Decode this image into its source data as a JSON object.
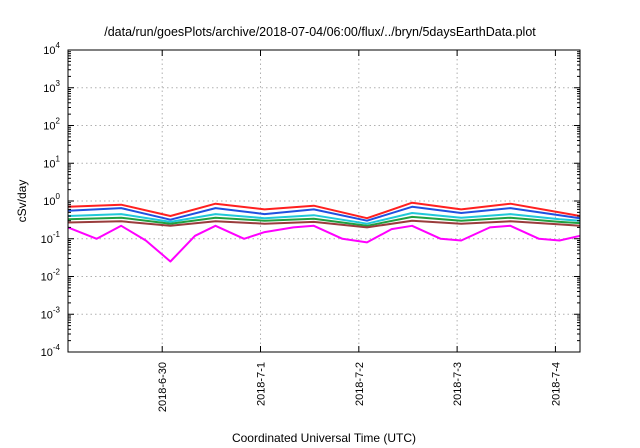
{
  "chart_data": {
    "type": "line",
    "title": "/data/run/goesPlots/archive/2018-07-04/06:00/flux/../bryn/5daysEarthData.plot",
    "xlabel": "Coordinated Universal Time (UTC)",
    "ylabel": "cSv/day",
    "xscale": "time",
    "yscale": "log",
    "xlim": [
      "2018-06-29T01:00",
      "2018-07-04T06:00"
    ],
    "ylim": [
      0.0001,
      10000
    ],
    "x_ticks": [
      {
        "label": "2018-6-30",
        "value": "2018-06-30T00:00"
      },
      {
        "label": "2018-7-1",
        "value": "2018-07-01T00:00"
      },
      {
        "label": "2018-7-2",
        "value": "2018-07-02T00:00"
      },
      {
        "label": "2018-7-3",
        "value": "2018-07-03T00:00"
      },
      {
        "label": "2018-7-4",
        "value": "2018-07-04T00:00"
      }
    ],
    "y_ticks": [
      {
        "base": "10",
        "exp": "-4",
        "value": 0.0001
      },
      {
        "base": "10",
        "exp": "-3",
        "value": 0.001
      },
      {
        "base": "10",
        "exp": "-2",
        "value": 0.01
      },
      {
        "base": "10",
        "exp": "-1",
        "value": 0.1
      },
      {
        "base": "10",
        "exp": "0",
        "value": 1
      },
      {
        "base": "10",
        "exp": "1",
        "value": 10
      },
      {
        "base": "10",
        "exp": "2",
        "value": 100
      },
      {
        "base": "10",
        "exp": "3",
        "value": 1000
      },
      {
        "base": "10",
        "exp": "4",
        "value": 10000
      }
    ],
    "grid": true,
    "series": [
      {
        "color": "#ff2020",
        "x": [
          "2018-06-29T01:00",
          "2018-06-29T14:00",
          "2018-06-30T02:00",
          "2018-06-30T13:00",
          "2018-07-01T01:00",
          "2018-07-01T13:00",
          "2018-07-02T02:00",
          "2018-07-02T13:00",
          "2018-07-03T01:00",
          "2018-07-03T13:00",
          "2018-07-04T01:00",
          "2018-07-04T06:00"
        ],
        "y": [
          0.7,
          0.8,
          0.4,
          0.85,
          0.6,
          0.75,
          0.35,
          0.9,
          0.6,
          0.85,
          0.5,
          0.4
        ]
      },
      {
        "color": "#2050e0",
        "x": [
          "2018-06-29T01:00",
          "2018-06-29T14:00",
          "2018-06-30T02:00",
          "2018-06-30T13:00",
          "2018-07-01T01:00",
          "2018-07-01T13:00",
          "2018-07-02T02:00",
          "2018-07-02T13:00",
          "2018-07-03T01:00",
          "2018-07-03T13:00",
          "2018-07-04T01:00",
          "2018-07-04T06:00"
        ],
        "y": [
          0.55,
          0.65,
          0.32,
          0.65,
          0.45,
          0.6,
          0.3,
          0.7,
          0.48,
          0.65,
          0.42,
          0.35
        ]
      },
      {
        "color": "#20c8d8",
        "x": [
          "2018-06-29T01:00",
          "2018-06-29T14:00",
          "2018-06-30T02:00",
          "2018-06-30T13:00",
          "2018-07-01T01:00",
          "2018-07-01T13:00",
          "2018-07-02T02:00",
          "2018-07-02T13:00",
          "2018-07-03T01:00",
          "2018-07-03T13:00",
          "2018-07-04T01:00",
          "2018-07-04T06:00"
        ],
        "y": [
          0.4,
          0.45,
          0.28,
          0.45,
          0.35,
          0.42,
          0.25,
          0.48,
          0.36,
          0.45,
          0.33,
          0.3
        ]
      },
      {
        "color": "#20a040",
        "x": [
          "2018-06-29T01:00",
          "2018-06-29T14:00",
          "2018-06-30T02:00",
          "2018-06-30T13:00",
          "2018-07-01T01:00",
          "2018-07-01T13:00",
          "2018-07-02T02:00",
          "2018-07-02T13:00",
          "2018-07-03T01:00",
          "2018-07-03T13:00",
          "2018-07-04T01:00",
          "2018-07-04T06:00"
        ],
        "y": [
          0.33,
          0.36,
          0.25,
          0.36,
          0.3,
          0.34,
          0.22,
          0.38,
          0.3,
          0.36,
          0.28,
          0.26
        ]
      },
      {
        "color": "#9a3c3c",
        "x": [
          "2018-06-29T01:00",
          "2018-06-29T14:00",
          "2018-06-30T02:00",
          "2018-06-30T13:00",
          "2018-07-01T01:00",
          "2018-07-01T13:00",
          "2018-07-02T02:00",
          "2018-07-02T13:00",
          "2018-07-03T01:00",
          "2018-07-03T13:00",
          "2018-07-04T01:00",
          "2018-07-04T06:00"
        ],
        "y": [
          0.27,
          0.29,
          0.22,
          0.29,
          0.25,
          0.28,
          0.2,
          0.3,
          0.25,
          0.29,
          0.24,
          0.22
        ]
      },
      {
        "color": "#ff00ff",
        "x": [
          "2018-06-29T01:00",
          "2018-06-29T08:00",
          "2018-06-29T14:00",
          "2018-06-29T20:00",
          "2018-06-30T02:00",
          "2018-06-30T08:00",
          "2018-06-30T13:00",
          "2018-06-30T20:00",
          "2018-07-01T01:00",
          "2018-07-01T08:00",
          "2018-07-01T13:00",
          "2018-07-01T20:00",
          "2018-07-02T02:00",
          "2018-07-02T08:00",
          "2018-07-02T13:00",
          "2018-07-02T20:00",
          "2018-07-03T01:00",
          "2018-07-03T08:00",
          "2018-07-03T13:00",
          "2018-07-03T20:00",
          "2018-07-04T01:00",
          "2018-07-04T06:00"
        ],
        "y": [
          0.2,
          0.1,
          0.22,
          0.09,
          0.025,
          0.12,
          0.22,
          0.1,
          0.15,
          0.2,
          0.22,
          0.1,
          0.08,
          0.18,
          0.22,
          0.1,
          0.09,
          0.2,
          0.22,
          0.1,
          0.09,
          0.12
        ]
      }
    ]
  }
}
